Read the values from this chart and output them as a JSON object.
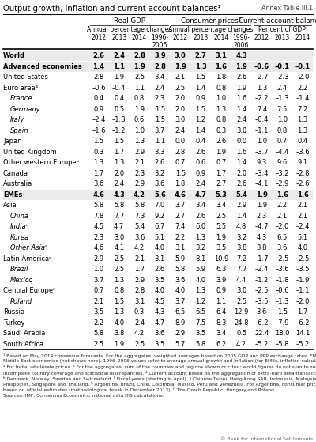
{
  "title": "Output growth, inflation and current account balances¹",
  "annex": "Annex Table III.1",
  "col_groups": [
    {
      "name": "Real GDP",
      "subname": "Annual percentage changes",
      "cols": [
        "2012",
        "2013",
        "2014",
        "1996-\n2006"
      ]
    },
    {
      "name": "Consumer prices²",
      "subname": "Annual percentage changes",
      "cols": [
        "2012",
        "2013",
        "2014",
        "1996-\n2006"
      ]
    },
    {
      "name": "Current account balance³",
      "subname": "Per cent of GDP",
      "cols": [
        "2012",
        "2013",
        "2014"
      ]
    }
  ],
  "rows": [
    {
      "label": "World",
      "bold": true,
      "indent": 0,
      "gdp": [
        "2.6",
        "2.4",
        "2.8",
        "3.9"
      ],
      "cpi": [
        "3.0",
        "2.7",
        "3.1",
        "4.3"
      ],
      "cab": [
        "",
        "",
        ""
      ]
    },
    {
      "label": "Advanced economies",
      "bold": true,
      "indent": 0,
      "gdp": [
        "1.4",
        "1.1",
        "1.9",
        "2.8"
      ],
      "cpi": [
        "1.9",
        "1.3",
        "1.6",
        "1.9"
      ],
      "cab": [
        "–0.6",
        "–0.1",
        "–0.1"
      ]
    },
    {
      "label": "United States",
      "bold": false,
      "indent": 0,
      "gdp": [
        "2.8",
        "1.9",
        "2.5",
        "3.4"
      ],
      "cpi": [
        "2.1",
        "1.5",
        "1.8",
        "2.6"
      ],
      "cab": [
        "–2.7",
        "–2.3",
        "–2.0"
      ]
    },
    {
      "label": "Euro area⁴",
      "bold": false,
      "indent": 0,
      "gdp": [
        "–0.6",
        "–0.4",
        "1.1",
        "2.4"
      ],
      "cpi": [
        "2.5",
        "1.4",
        "0.8",
        "1.9"
      ],
      "cab": [
        "1.3",
        "2.4",
        "2.2"
      ]
    },
    {
      "label": "France",
      "bold": false,
      "indent": 1,
      "gdp": [
        "0.4",
        "0.4",
        "0.8",
        "2.3"
      ],
      "cpi": [
        "2.0",
        "0.9",
        "1.0",
        "1.6"
      ],
      "cab": [
        "–2.2",
        "–1.3",
        "–1.4"
      ]
    },
    {
      "label": "Germany",
      "bold": false,
      "indent": 1,
      "gdp": [
        "0.9",
        "0.5",
        "1.9",
        "1.5"
      ],
      "cpi": [
        "2.0",
        "1.5",
        "1.3",
        "1.4"
      ],
      "cab": [
        "7.4",
        "7.5",
        "7.2"
      ]
    },
    {
      "label": "Italy",
      "bold": false,
      "indent": 1,
      "gdp": [
        "–2.4",
        "–1.8",
        "0.6",
        "1.5"
      ],
      "cpi": [
        "3.0",
        "1.2",
        "0.8",
        "2.4"
      ],
      "cab": [
        "–0.4",
        "1.0",
        "1.3"
      ]
    },
    {
      "label": "Spain",
      "bold": false,
      "indent": 1,
      "gdp": [
        "–1.6",
        "–1.2",
        "1.0",
        "3.7"
      ],
      "cpi": [
        "2.4",
        "1.4",
        "0.3",
        "3.0"
      ],
      "cab": [
        "–1.1",
        "0.8",
        "1.3"
      ]
    },
    {
      "label": "Japan",
      "bold": false,
      "indent": 0,
      "gdp": [
        "1.5",
        "1.5",
        "1.3",
        "1.1"
      ],
      "cpi": [
        "0.0",
        "0.4",
        "2.6",
        "0.0"
      ],
      "cab": [
        "1.0",
        "0.7",
        "0.4"
      ]
    },
    {
      "label": "United Kingdom",
      "bold": false,
      "indent": 0,
      "gdp": [
        "0.3",
        "1.7",
        "2.9",
        "3.3"
      ],
      "cpi": [
        "2.8",
        "2.6",
        "1.9",
        "1.6"
      ],
      "cab": [
        "–3.7",
        "–4.4",
        "–3.6"
      ]
    },
    {
      "label": "Other western Europeᵇ",
      "bold": false,
      "indent": 0,
      "gdp": [
        "1.3",
        "1.3",
        "2.1",
        "2.6"
      ],
      "cpi": [
        "0.7",
        "0.6",
        "0.7",
        "1.4"
      ],
      "cab": [
        "9.3",
        "9.6",
        "9.1"
      ]
    },
    {
      "label": "Canada",
      "bold": false,
      "indent": 0,
      "gdp": [
        "1.7",
        "2.0",
        "2.3",
        "3.2"
      ],
      "cpi": [
        "1.5",
        "0.9",
        "1.7",
        "2.0"
      ],
      "cab": [
        "–3.4",
        "–3.2",
        "–2.8"
      ]
    },
    {
      "label": "Australia",
      "bold": false,
      "indent": 0,
      "gdp": [
        "3.6",
        "2.4",
        "2.9",
        "3.6"
      ],
      "cpi": [
        "1.8",
        "2.4",
        "2.7",
        "2.6"
      ],
      "cab": [
        "–4.1",
        "–2.9",
        "–2.6"
      ]
    },
    {
      "label": "EMEs",
      "bold": true,
      "indent": 0,
      "gdp": [
        "4.6",
        "4.3",
        "4.2",
        "5.6"
      ],
      "cpi": [
        "4.6",
        "4.7",
        "5.3",
        "5.4"
      ],
      "cab": [
        "1.9",
        "1.6",
        "1.6"
      ]
    },
    {
      "label": "Asia",
      "bold": false,
      "indent": 0,
      "gdp": [
        "5.8",
        "5.8",
        "5.8",
        "7.0"
      ],
      "cpi": [
        "3.7",
        "3.4",
        "3.4",
        "2.9"
      ],
      "cab": [
        "1.9",
        "2.2",
        "2.1"
      ]
    },
    {
      "label": "China",
      "bold": false,
      "indent": 1,
      "gdp": [
        "7.8",
        "7.7",
        "7.3",
        "9.2"
      ],
      "cpi": [
        "2.7",
        "2.6",
        "2.5",
        "1.4"
      ],
      "cab": [
        "2.3",
        "2.1",
        "2.1"
      ]
    },
    {
      "label": "Indiaᶜ",
      "bold": false,
      "indent": 1,
      "gdp": [
        "4.5",
        "4.7",
        "5.4",
        "6.7"
      ],
      "cpi": [
        "7.4",
        "6.0",
        "5.5",
        "4.8"
      ],
      "cab": [
        "–4.7",
        "–2.0",
        "–2.4"
      ]
    },
    {
      "label": "Korea",
      "bold": false,
      "indent": 1,
      "gdp": [
        "2.3",
        "3.0",
        "3.6",
        "5.1"
      ],
      "cpi": [
        "2.2",
        "1.3",
        "1.9",
        "3.2"
      ],
      "cab": [
        "4.3",
        "6.5",
        "5.1"
      ]
    },
    {
      "label": "Other Asiaᶠ",
      "bold": false,
      "indent": 1,
      "gdp": [
        "4.6",
        "4.1",
        "4.2",
        "4.0"
      ],
      "cpi": [
        "3.1",
        "3.2",
        "3.5",
        "3.8"
      ],
      "cab": [
        "3.8",
        "3.6",
        "4.0"
      ]
    },
    {
      "label": "Latin Americaᶢ",
      "bold": false,
      "indent": 0,
      "gdp": [
        "2.9",
        "2.5",
        "2.1",
        "3.1"
      ],
      "cpi": [
        "5.9",
        "8.1",
        "10.9",
        "7.2"
      ],
      "cab": [
        "–1.7",
        "–2.5",
        "–2.5"
      ]
    },
    {
      "label": "Brazil",
      "bold": false,
      "indent": 1,
      "gdp": [
        "1.0",
        "2.5",
        "1.7",
        "2.6"
      ],
      "cpi": [
        "5.8",
        "5.9",
        "6.3",
        "7.7"
      ],
      "cab": [
        "–2.4",
        "–3.6",
        "–3.5"
      ]
    },
    {
      "label": "Mexico",
      "bold": false,
      "indent": 1,
      "gdp": [
        "3.7",
        "1.3",
        "2.9",
        "3.5"
      ],
      "cpi": [
        "3.6",
        "4.0",
        "3.9",
        "4.4"
      ],
      "cab": [
        "–1.2",
        "–1.8",
        "–1.9"
      ]
    },
    {
      "label": "Central Europeʰ",
      "bold": false,
      "indent": 0,
      "gdp": [
        "0.7",
        "0.8",
        "2.8",
        "4.0"
      ],
      "cpi": [
        "4.0",
        "1.3",
        "0.9",
        "3.0"
      ],
      "cab": [
        "–2.5",
        "–0.6",
        "–1.1"
      ]
    },
    {
      "label": "Poland",
      "bold": false,
      "indent": 1,
      "gdp": [
        "2.1",
        "1.5",
        "3.1",
        "4.5"
      ],
      "cpi": [
        "3.7",
        "1.2",
        "1.1",
        "2.5"
      ],
      "cab": [
        "–3.5",
        "–1.3",
        "–2.0"
      ]
    },
    {
      "label": "Russia",
      "bold": false,
      "indent": 0,
      "gdp": [
        "3.5",
        "1.3",
        "0.3",
        "4.3"
      ],
      "cpi": [
        "6.5",
        "6.5",
        "6.4",
        "12.9"
      ],
      "cab": [
        "3.6",
        "1.5",
        "1.7"
      ]
    },
    {
      "label": "Turkey",
      "bold": false,
      "indent": 0,
      "gdp": [
        "2.2",
        "4.0",
        "2.4",
        "4.7"
      ],
      "cpi": [
        "8.9",
        "7.5",
        "8.3",
        "24.8"
      ],
      "cab": [
        "–6.2",
        "–7.9",
        "–6.2"
      ]
    },
    {
      "label": "Saudi Arabia",
      "bold": false,
      "indent": 0,
      "gdp": [
        "5.8",
        "3.8",
        "4.2",
        "3.6"
      ],
      "cpi": [
        "2.9",
        "3.5",
        "3.4",
        "0.5"
      ],
      "cab": [
        "22.4",
        "18.0",
        "14.1"
      ]
    },
    {
      "label": "South Africa",
      "bold": false,
      "indent": 0,
      "gdp": [
        "2.5",
        "1.9",
        "2.5",
        "3.5"
      ],
      "cpi": [
        "5.7",
        "5.8",
        "6.2",
        "4.2"
      ],
      "cab": [
        "–5.2",
        "–5.8",
        "–5.2"
      ]
    }
  ],
  "footnote_lines": [
    "¹ Based on May 2014 consensus forecasts. For the aggregates, weighted averages based on 2005 GDP and PPP exchange rates. EMEs include other",
    "Middle East economies (not shown here). 1996–2006 values refer to average annual growth and inflation (for EMEs, inflation calculated over 2001–06).",
    "² For India, wholesale prices. ³ For the aggregates, sum of the countries and regions shown or cited; world figures do not sum to zero because of",
    "incomplete country coverage and statistical discrepancies. ⁴ Current account based on the aggregation of extra-euro area transactions.",
    "ᵇ Denmark, Norway, Sweden and Switzerland. ᶠ Fiscal years (starting in April). ᶢ Chinese Taipei, Hong Kong SAR, Indonesia, Malaysia, the",
    "Philippines, Singapore and Thailand. ʰ Argentina, Brazil, Chile, Colombia, Mexico, Peru and Venezuela. For Argentina, consumer price data are",
    "based on official estimates (methodological break in December 2013). ʰ The Czech Republic, Hungary and Poland.",
    "Sources: IMF, Consensus Economics; national data BIS calculations."
  ],
  "copyright": "© Bank for International Settlements"
}
